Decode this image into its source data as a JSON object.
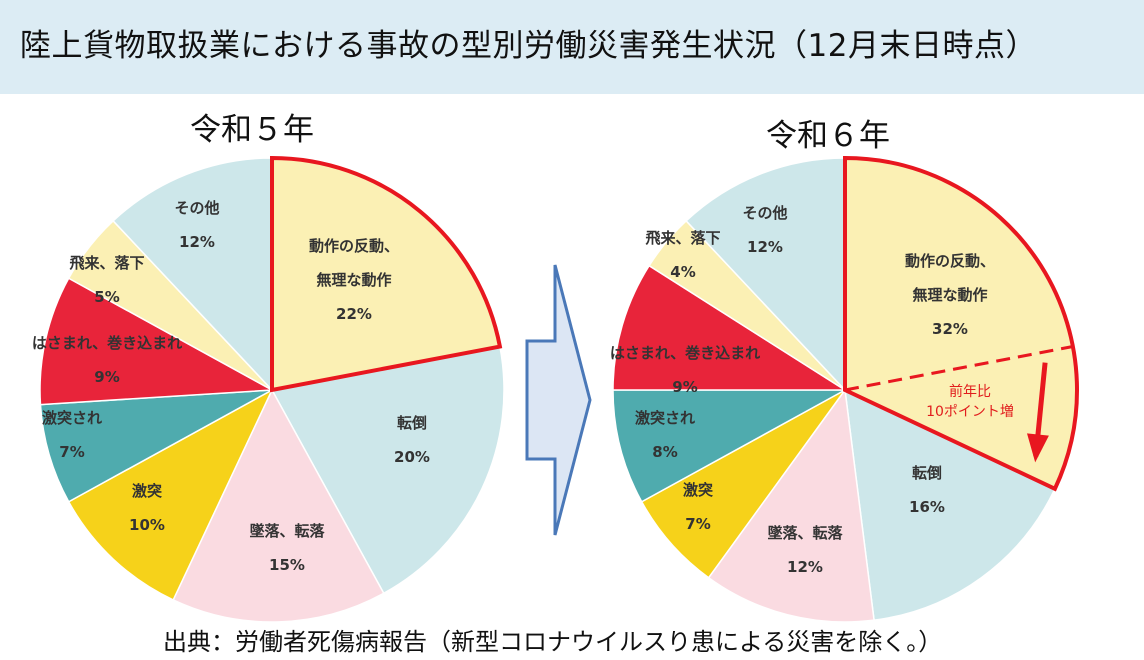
{
  "title": "陸上貨物取扱業における事故の型別労働災害発生状況（12月末日時点）",
  "source": "出典：労働者死傷病報告（新型コロナウイルスり患による災害を除く。）",
  "colors": {
    "header_bg": "#dcecf4",
    "highlight": "#e8171f",
    "arrow_fill": "#dce6f4",
    "arrow_stroke": "#4a78b8"
  },
  "chart_data": [
    {
      "type": "pie",
      "title": "令和５年",
      "highlight": "動作の反動、無理な動作",
      "slices": [
        {
          "label": "動作の反動、無理な動作",
          "lines": [
            "動作の反動、",
            "無理な動作"
          ],
          "value": 22,
          "value_label": "22%",
          "color": "#fbf0b4"
        },
        {
          "label": "転倒",
          "lines": [
            "転倒"
          ],
          "value": 20,
          "value_label": "20%",
          "color": "#cde7ea"
        },
        {
          "label": "墜落、転落",
          "lines": [
            "墜落、転落"
          ],
          "value": 15,
          "value_label": "15%",
          "color": "#fadbe1"
        },
        {
          "label": "激突",
          "lines": [
            "激突"
          ],
          "value": 10,
          "value_label": "10%",
          "color": "#f6d21a"
        },
        {
          "label": "激突され",
          "lines": [
            "激突され"
          ],
          "value": 7,
          "value_label": "7%",
          "color": "#4fabae"
        },
        {
          "label": "はさまれ、巻き込まれ",
          "lines": [
            "はさまれ、巻き込まれ"
          ],
          "value": 9,
          "value_label": "9%",
          "color": "#e8243a"
        },
        {
          "label": "飛来、落下",
          "lines": [
            "飛来、落下"
          ],
          "value": 5,
          "value_label": "5%",
          "color": "#fbf0b4"
        },
        {
          "label": "その他",
          "lines": [
            "その他"
          ],
          "value": 12,
          "value_label": "12%",
          "color": "#cde7ea"
        }
      ]
    },
    {
      "type": "pie",
      "title": "令和６年",
      "highlight": "動作の反動、無理な動作",
      "annotation": [
        "前年比",
        "10ポイント増"
      ],
      "slices": [
        {
          "label": "動作の反動、無理な動作",
          "lines": [
            "動作の反動、",
            "無理な動作"
          ],
          "value": 32,
          "value_label": "32%",
          "color": "#fbf0b4"
        },
        {
          "label": "転倒",
          "lines": [
            "転倒"
          ],
          "value": 16,
          "value_label": "16%",
          "color": "#cde7ea"
        },
        {
          "label": "墜落、転落",
          "lines": [
            "墜落、転落"
          ],
          "value": 12,
          "value_label": "12%",
          "color": "#fadbe1"
        },
        {
          "label": "激突",
          "lines": [
            "激突"
          ],
          "value": 7,
          "value_label": "7%",
          "color": "#f6d21a"
        },
        {
          "label": "激突され",
          "lines": [
            "激突され"
          ],
          "value": 8,
          "value_label": "8%",
          "color": "#4fabae"
        },
        {
          "label": "はさまれ、巻き込まれ",
          "lines": [
            "はさまれ、巻き込まれ"
          ],
          "value": 9,
          "value_label": "9%",
          "color": "#e8243a"
        },
        {
          "label": "飛来、落下",
          "lines": [
            "飛来、落下"
          ],
          "value": 4,
          "value_label": "4%",
          "color": "#fbf0b4"
        },
        {
          "label": "その他",
          "lines": [
            "その他"
          ],
          "value": 12,
          "value_label": "12%",
          "color": "#cde7ea"
        }
      ]
    }
  ]
}
